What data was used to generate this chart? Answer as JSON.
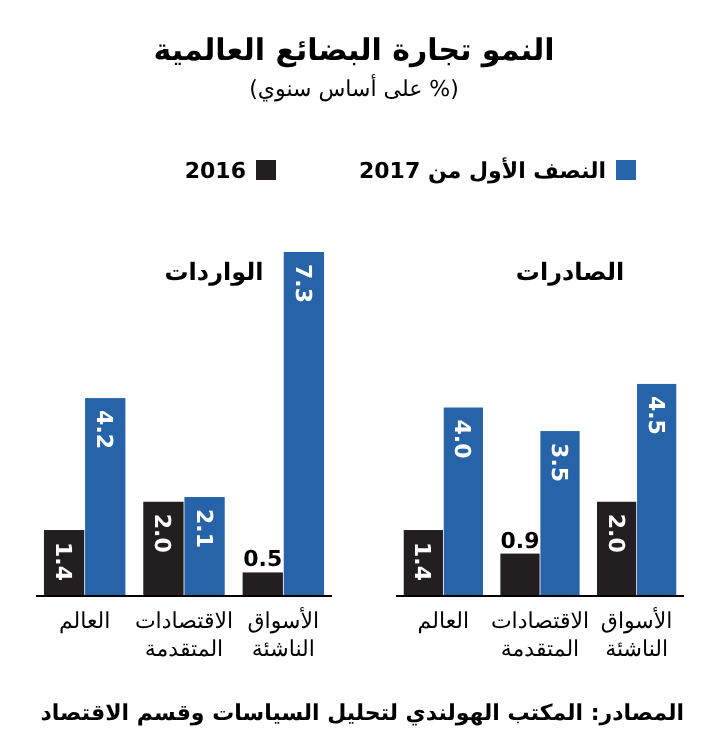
{
  "chart_data": [
    {
      "type": "bar",
      "title": "النمو تجارة البضائع العالمية",
      "subtitle": "(% على أساس سنوي)",
      "annotations": [
        "الواردات"
      ],
      "categories": [
        "العالم",
        "الاقتصادات المتقدمة",
        "الأسواق الناشئة"
      ],
      "legend": "top",
      "series": [
        {
          "name": "2016",
          "color": "#231f20",
          "values": [
            1.4,
            2.0,
            0.5
          ],
          "value_labels": [
            "1.4",
            "2.0",
            "0.5"
          ]
        },
        {
          "name": "النصف الأول من 2017",
          "color": "#2763a8",
          "values": [
            4.2,
            2.1,
            7.3
          ],
          "value_labels": [
            "4.2",
            "2.1",
            "7.3"
          ]
        }
      ]
    },
    {
      "type": "bar",
      "annotations": [
        "الصادرات",
        "المصادر: المكتب الهولندي لتحليل السياسات وقسم الاقتصاد"
      ],
      "categories": [
        "العالم",
        "الاقتصادات المتقدمة",
        "الأسواق الناشئة"
      ],
      "series": [
        {
          "color": "#231f20",
          "values": [
            1.4,
            0.9,
            2.0
          ],
          "value_labels": [
            "1.4",
            "0.9",
            "2.0"
          ]
        },
        {
          "color": "#2763a8",
          "values": [
            4.0,
            3.5,
            4.5
          ],
          "value_labels": [
            "4.0",
            "3.5",
            "4.5"
          ]
        }
      ]
    }
  ]
}
